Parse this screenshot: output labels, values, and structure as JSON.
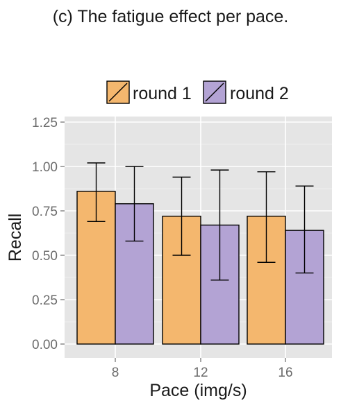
{
  "caption": "(c) The fatigue effect per pace.",
  "chart_data": {
    "type": "bar",
    "title": "",
    "xlabel": "Pace (img/s)",
    "ylabel": "Recall",
    "categories": [
      "8",
      "12",
      "16"
    ],
    "ylim": [
      0,
      1.25
    ],
    "yticks": [
      0.0,
      0.25,
      0.5,
      0.75,
      1.0,
      1.25
    ],
    "ytick_labels": [
      "0.00",
      "0.25",
      "0.50",
      "0.75",
      "1.00",
      "1.25"
    ],
    "grid": true,
    "legend_position": "top",
    "series": [
      {
        "name": "round 1",
        "color": "#f4b76e",
        "values": [
          0.86,
          0.72,
          0.72
        ],
        "error_low": [
          0.69,
          0.5,
          0.46
        ],
        "error_high": [
          1.02,
          0.94,
          0.97
        ]
      },
      {
        "name": "round 2",
        "color": "#b3a3d4",
        "values": [
          0.79,
          0.67,
          0.64
        ],
        "error_low": [
          0.58,
          0.36,
          0.4
        ],
        "error_high": [
          1.0,
          0.98,
          0.89
        ]
      }
    ]
  },
  "colors": {
    "panel_background": "#e5e5e5",
    "grid": "#ffffff",
    "bar_outline": "#000000"
  }
}
